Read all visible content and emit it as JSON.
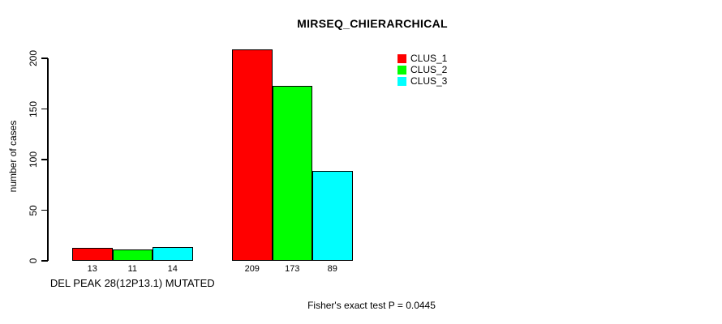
{
  "chart_data": {
    "type": "bar",
    "title": "MIRSEQ_CHIERARCHICAL",
    "ylabel": "number of cases",
    "xlabel": "",
    "ylim": [
      0,
      200
    ],
    "yticks": [
      0,
      50,
      100,
      150,
      200
    ],
    "grid": false,
    "legend_position": "top-right",
    "series": [
      {
        "name": "CLUS_1",
        "color": "#FF0000"
      },
      {
        "name": "CLUS_2",
        "color": "#00FF00"
      },
      {
        "name": "CLUS_3",
        "color": "#00FFFF"
      }
    ],
    "groups": [
      {
        "label": "DEL PEAK 28(12P13.1) MUTATED",
        "values": [
          13,
          11,
          14
        ]
      },
      {
        "label": "",
        "values": [
          209,
          173,
          89
        ]
      }
    ],
    "bar_border_color": "#000000",
    "background_color": "#FFFFFF",
    "annotation": "Fisher's exact test P = 0.0445"
  }
}
